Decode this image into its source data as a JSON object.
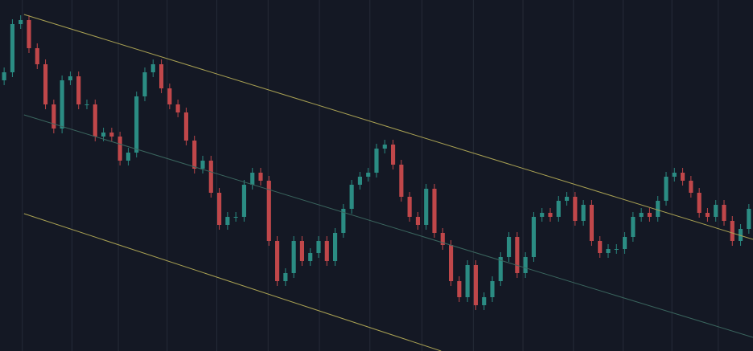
{
  "chart_data": {
    "type": "candlestick",
    "x": [
      0,
      1,
      2,
      3,
      4,
      5,
      6,
      7,
      8,
      9,
      10,
      11,
      12,
      13,
      14,
      15,
      16,
      17,
      18,
      19,
      20,
      21,
      22,
      23,
      24,
      25,
      26,
      27,
      28,
      29,
      30,
      31,
      32,
      33,
      34,
      35,
      36,
      37,
      38,
      39,
      40,
      41,
      42,
      43,
      44,
      45,
      46,
      47,
      48,
      49,
      50,
      51,
      52,
      53,
      54,
      55,
      56,
      57,
      58,
      59,
      60,
      61,
      62,
      63,
      64,
      65,
      66,
      67,
      68,
      69,
      70,
      71,
      72,
      73,
      74,
      75,
      76,
      77,
      78,
      79,
      80,
      81,
      82,
      83,
      84,
      85,
      86,
      87,
      88,
      89,
      90
    ],
    "open": [
      337,
      347,
      407,
      412,
      377,
      357,
      307,
      277,
      337,
      342,
      307,
      307,
      267,
      272,
      267,
      237,
      247,
      317,
      347,
      357,
      327,
      307,
      297,
      262,
      227,
      237,
      197,
      157,
      167,
      167,
      207,
      222,
      212,
      137,
      87,
      97,
      137,
      112,
      122,
      137,
      112,
      147,
      177,
      207,
      217,
      222,
      252,
      257,
      232,
      192,
      167,
      157,
      202,
      147,
      132,
      87,
      67,
      107,
      57,
      67,
      87,
      117,
      142,
      97,
      117,
      167,
      172,
      167,
      187,
      192,
      162,
      182,
      137,
      122,
      127,
      127,
      142,
      167,
      172,
      167,
      187,
      217,
      222,
      212,
      197,
      172,
      167,
      182,
      162,
      137,
      152
    ],
    "high": [
      353,
      413,
      418,
      418,
      383,
      363,
      313,
      343,
      348,
      348,
      313,
      313,
      278,
      278,
      273,
      253,
      323,
      353,
      363,
      363,
      333,
      313,
      303,
      268,
      243,
      243,
      203,
      173,
      173,
      213,
      228,
      228,
      218,
      143,
      103,
      143,
      143,
      128,
      143,
      143,
      153,
      183,
      213,
      223,
      228,
      258,
      263,
      263,
      238,
      198,
      173,
      208,
      208,
      153,
      138,
      93,
      113,
      113,
      73,
      93,
      123,
      148,
      148,
      123,
      173,
      178,
      178,
      193,
      198,
      198,
      188,
      188,
      143,
      133,
      133,
      148,
      173,
      178,
      178,
      193,
      223,
      228,
      228,
      218,
      203,
      178,
      188,
      188,
      168,
      158,
      183
    ],
    "low": [
      331,
      341,
      401,
      371,
      351,
      301,
      271,
      271,
      331,
      301,
      301,
      261,
      261,
      261,
      231,
      231,
      241,
      311,
      341,
      321,
      301,
      291,
      256,
      221,
      221,
      191,
      151,
      151,
      161,
      161,
      201,
      206,
      131,
      81,
      81,
      91,
      106,
      106,
      116,
      106,
      106,
      141,
      171,
      201,
      211,
      216,
      246,
      226,
      186,
      161,
      151,
      151,
      141,
      126,
      81,
      61,
      61,
      51,
      51,
      61,
      81,
      111,
      91,
      91,
      111,
      161,
      161,
      161,
      181,
      156,
      156,
      131,
      116,
      116,
      121,
      121,
      136,
      161,
      161,
      161,
      181,
      211,
      206,
      191,
      166,
      161,
      161,
      156,
      131,
      131,
      146
    ],
    "close": [
      347,
      407,
      412,
      377,
      357,
      307,
      277,
      337,
      342,
      307,
      307,
      267,
      272,
      267,
      237,
      247,
      317,
      347,
      357,
      327,
      307,
      297,
      262,
      227,
      237,
      197,
      157,
      167,
      167,
      207,
      222,
      212,
      137,
      87,
      97,
      137,
      112,
      122,
      137,
      112,
      147,
      177,
      207,
      217,
      222,
      252,
      257,
      232,
      192,
      167,
      157,
      202,
      147,
      132,
      87,
      67,
      107,
      57,
      67,
      87,
      117,
      142,
      97,
      117,
      167,
      172,
      167,
      187,
      192,
      162,
      182,
      137,
      122,
      127,
      127,
      142,
      167,
      172,
      167,
      187,
      217,
      222,
      212,
      197,
      172,
      167,
      182,
      162,
      137,
      152,
      177
    ],
    "up_color": "#2b8c83",
    "down_color": "#c0474a",
    "xlim": [
      -0.5,
      90.5
    ],
    "ylim": [
      0,
      437
    ],
    "xticks": [
      2.2,
      8.2,
      13.8,
      19.7,
      25.7,
      31.9,
      38.1,
      44.2,
      50.5,
      56.7,
      62.7,
      68.8,
      74.8,
      80.7,
      86.3
    ],
    "grid": true,
    "channel": [
      {
        "x": [
          2.4,
          90.5
        ],
        "values": [
          419,
          139
        ],
        "color": "#a9a153"
      },
      {
        "x": [
          2.4,
          90.5
        ],
        "values": [
          294,
          17
        ],
        "color": "#3a655e"
      },
      {
        "x": [
          2.4,
          52.8
        ],
        "values": [
          171,
          0
        ],
        "color": "#a9a153"
      }
    ]
  }
}
